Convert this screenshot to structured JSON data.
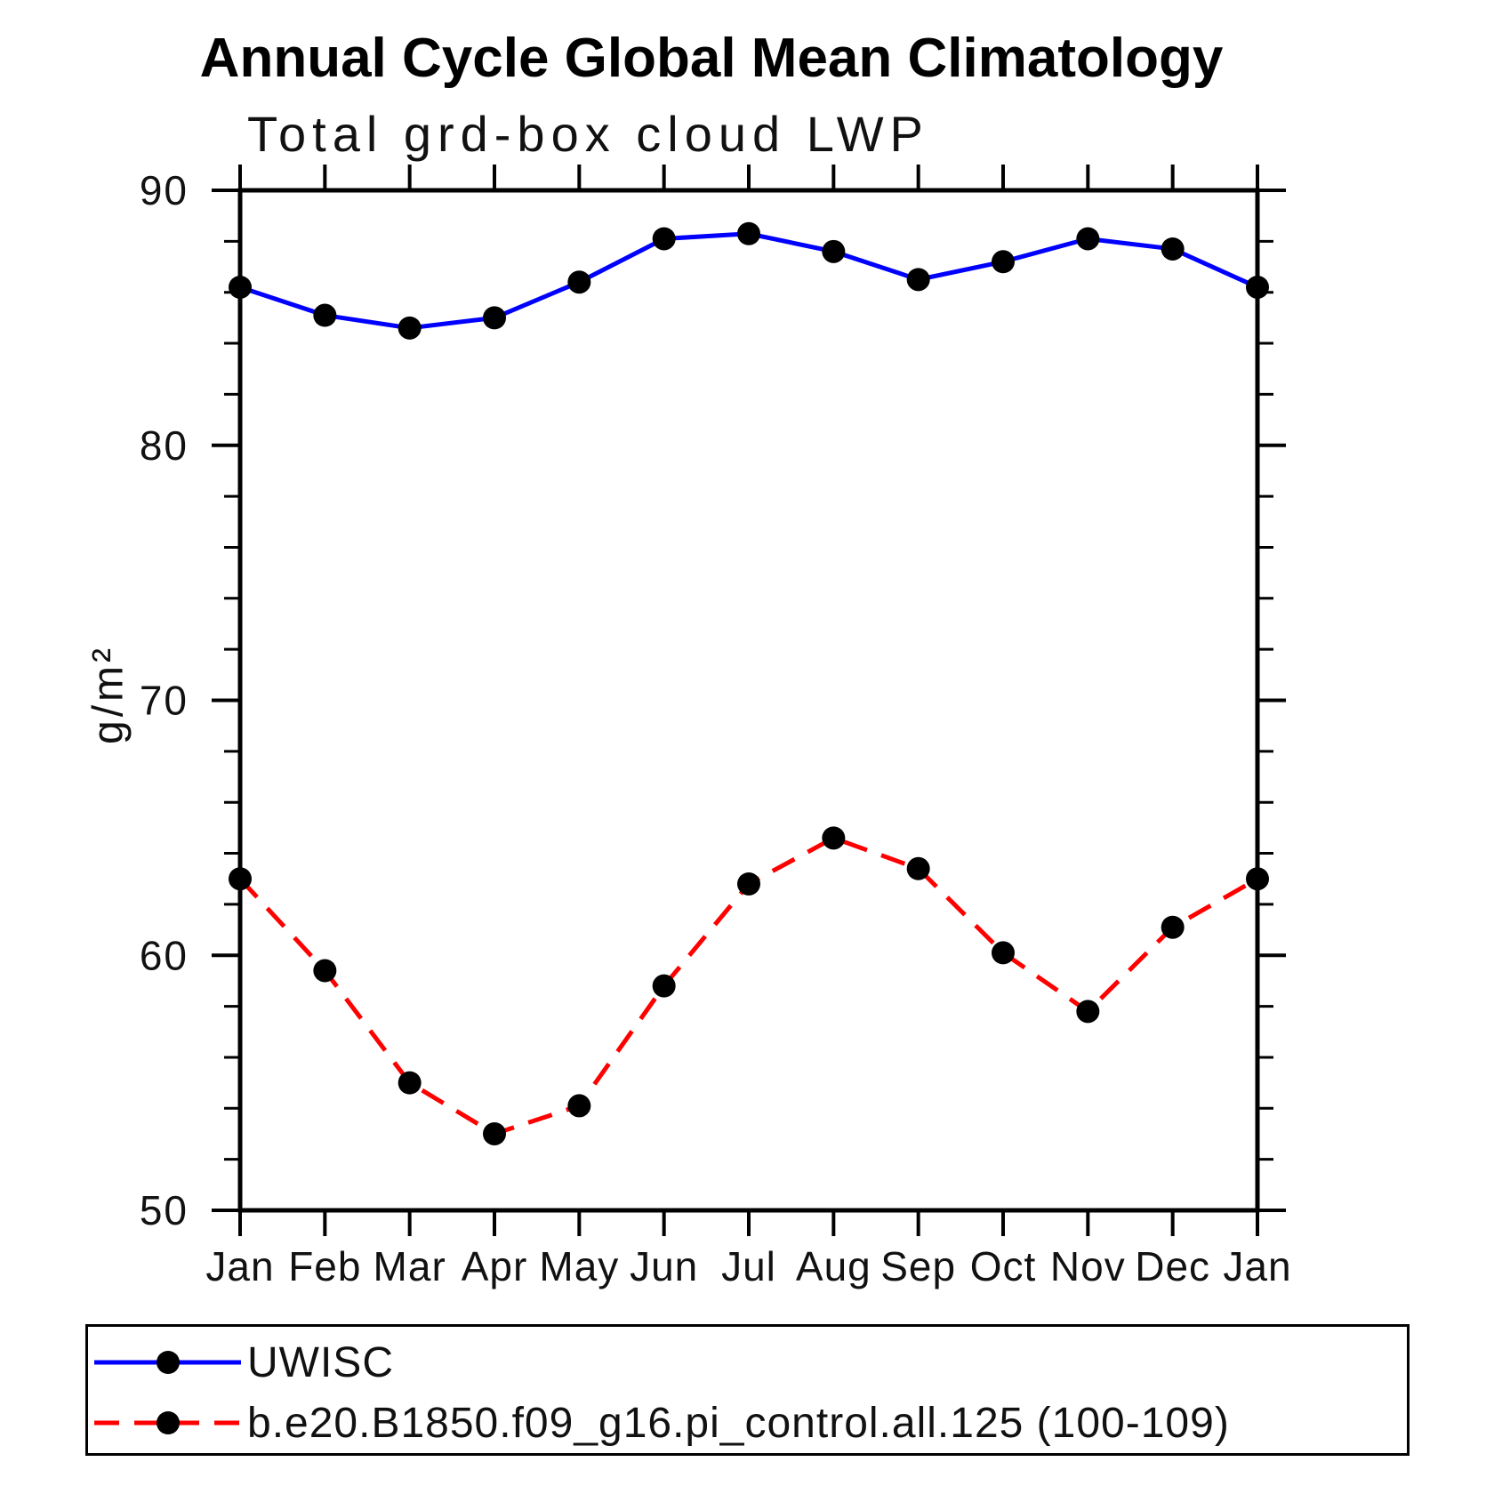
{
  "title": "Annual Cycle Global Mean Climatology",
  "subtitle": "Total grd-box cloud LWP",
  "y_axis": {
    "label": "g/m²",
    "major_tick_labels": [
      "90",
      "80",
      "70",
      "60",
      "50"
    ]
  },
  "x_axis": {
    "tick_labels": [
      "Jan",
      "Feb",
      "Mar",
      "Apr",
      "May",
      "Jun",
      "Jul",
      "Aug",
      "Sep",
      "Oct",
      "Nov",
      "Dec",
      "Jan"
    ]
  },
  "legend": {
    "entries": [
      {
        "label": "UWISC"
      },
      {
        "label": "b.e20.B1850.f09_g16.pi_control.all.125 (100-109)"
      }
    ]
  },
  "chart_data": {
    "type": "line",
    "title": "Annual Cycle Global Mean Climatology",
    "subtitle": "Total grd-box cloud LWP",
    "xlabel": "",
    "ylabel": "g/m²",
    "categories": [
      "Jan",
      "Feb",
      "Mar",
      "Apr",
      "May",
      "Jun",
      "Jul",
      "Aug",
      "Sep",
      "Oct",
      "Nov",
      "Dec",
      "Jan"
    ],
    "ylim": [
      50,
      90
    ],
    "y_major_ticks": [
      50,
      60,
      70,
      80,
      90
    ],
    "y_minor_step": 2,
    "grid": false,
    "legend_position": "bottom-left-box",
    "tick_direction": "out",
    "marker": {
      "shape": "circle",
      "color": "#000000"
    },
    "series": [
      {
        "name": "UWISC",
        "color": "#0000ff",
        "line_style": "solid",
        "values": [
          86.2,
          85.1,
          84.6,
          85.0,
          86.4,
          88.1,
          88.3,
          87.6,
          86.5,
          87.2,
          88.1,
          87.7,
          86.2
        ]
      },
      {
        "name": "b.e20.B1850.f09_g16.pi_control.all.125 (100-109)",
        "color": "#ff0000",
        "line_style": "dashed",
        "values": [
          63.0,
          59.4,
          55.0,
          53.0,
          54.1,
          58.8,
          62.8,
          64.6,
          63.4,
          60.1,
          57.8,
          61.1,
          63.0
        ]
      }
    ]
  }
}
